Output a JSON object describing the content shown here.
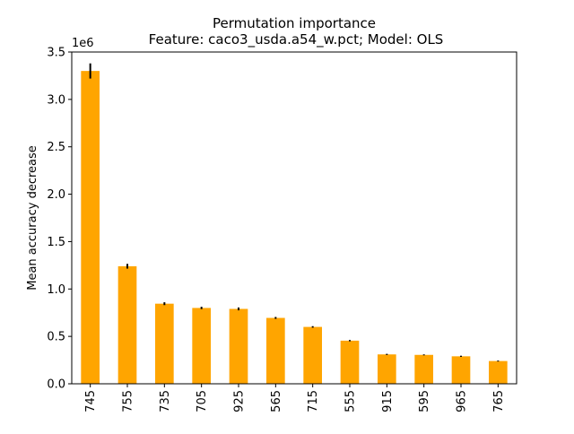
{
  "chart_data": {
    "type": "bar",
    "title": "Permutation importance",
    "subtitle": "Feature: caco3_usda.a54_w.pct; Model: OLS",
    "xlabel": "",
    "ylabel": "Mean accuracy decrease",
    "y_offset_label": "1e6",
    "categories": [
      "745",
      "755",
      "735",
      "705",
      "925",
      "565",
      "715",
      "555",
      "915",
      "595",
      "965",
      "765"
    ],
    "values": [
      3300000,
      1240000,
      845000,
      800000,
      790000,
      695000,
      600000,
      455000,
      310000,
      305000,
      290000,
      240000
    ],
    "errors": [
      80000,
      25000,
      15000,
      12000,
      15000,
      10000,
      8000,
      7000,
      6000,
      5000,
      6000,
      5000
    ],
    "ylim": [
      0,
      3500000
    ],
    "yticks": [
      0,
      500000,
      1000000,
      1500000,
      2000000,
      2500000,
      3000000,
      3500000
    ],
    "ytick_labels": [
      "0.0",
      "0.5",
      "1.0",
      "1.5",
      "2.0",
      "2.5",
      "3.0",
      "3.5"
    ],
    "bar_color": "#FFA500",
    "error_color": "#000000",
    "grid": false,
    "legend": "none"
  }
}
